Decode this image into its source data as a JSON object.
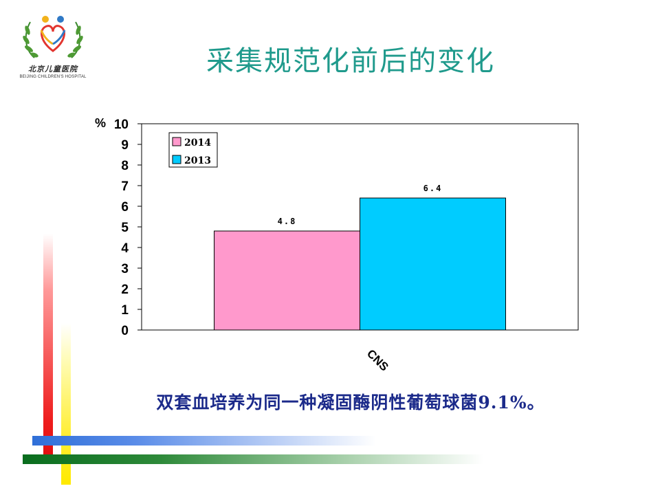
{
  "logo": {
    "name_cn": "北京儿童医院",
    "name_en": "BEIJING CHILDREN'S HOSPITAL"
  },
  "slide_title": "采集规范化前后的变化",
  "note": "双套血培养为同一种凝固酶阴性葡萄球菌9.1%。",
  "chart_data": {
    "type": "bar",
    "categories": [
      "CNS"
    ],
    "series": [
      {
        "name": "2014",
        "values": [
          4.8
        ],
        "value_labels": [
          "4.8"
        ],
        "color": "#ff99cc"
      },
      {
        "name": "2013",
        "values": [
          6.4
        ],
        "value_labels": [
          "6.4"
        ],
        "color": "#00ccff"
      }
    ],
    "ylabel": "%",
    "ylim": [
      0,
      10
    ],
    "yticks": [
      0,
      1,
      2,
      3,
      4,
      5,
      6,
      7,
      8,
      9,
      10
    ],
    "grid": false,
    "legend": "top-left",
    "title": "",
    "xlabel": ""
  },
  "colors": {
    "title": "#1f9a8c",
    "note": "#1b2a8a"
  }
}
